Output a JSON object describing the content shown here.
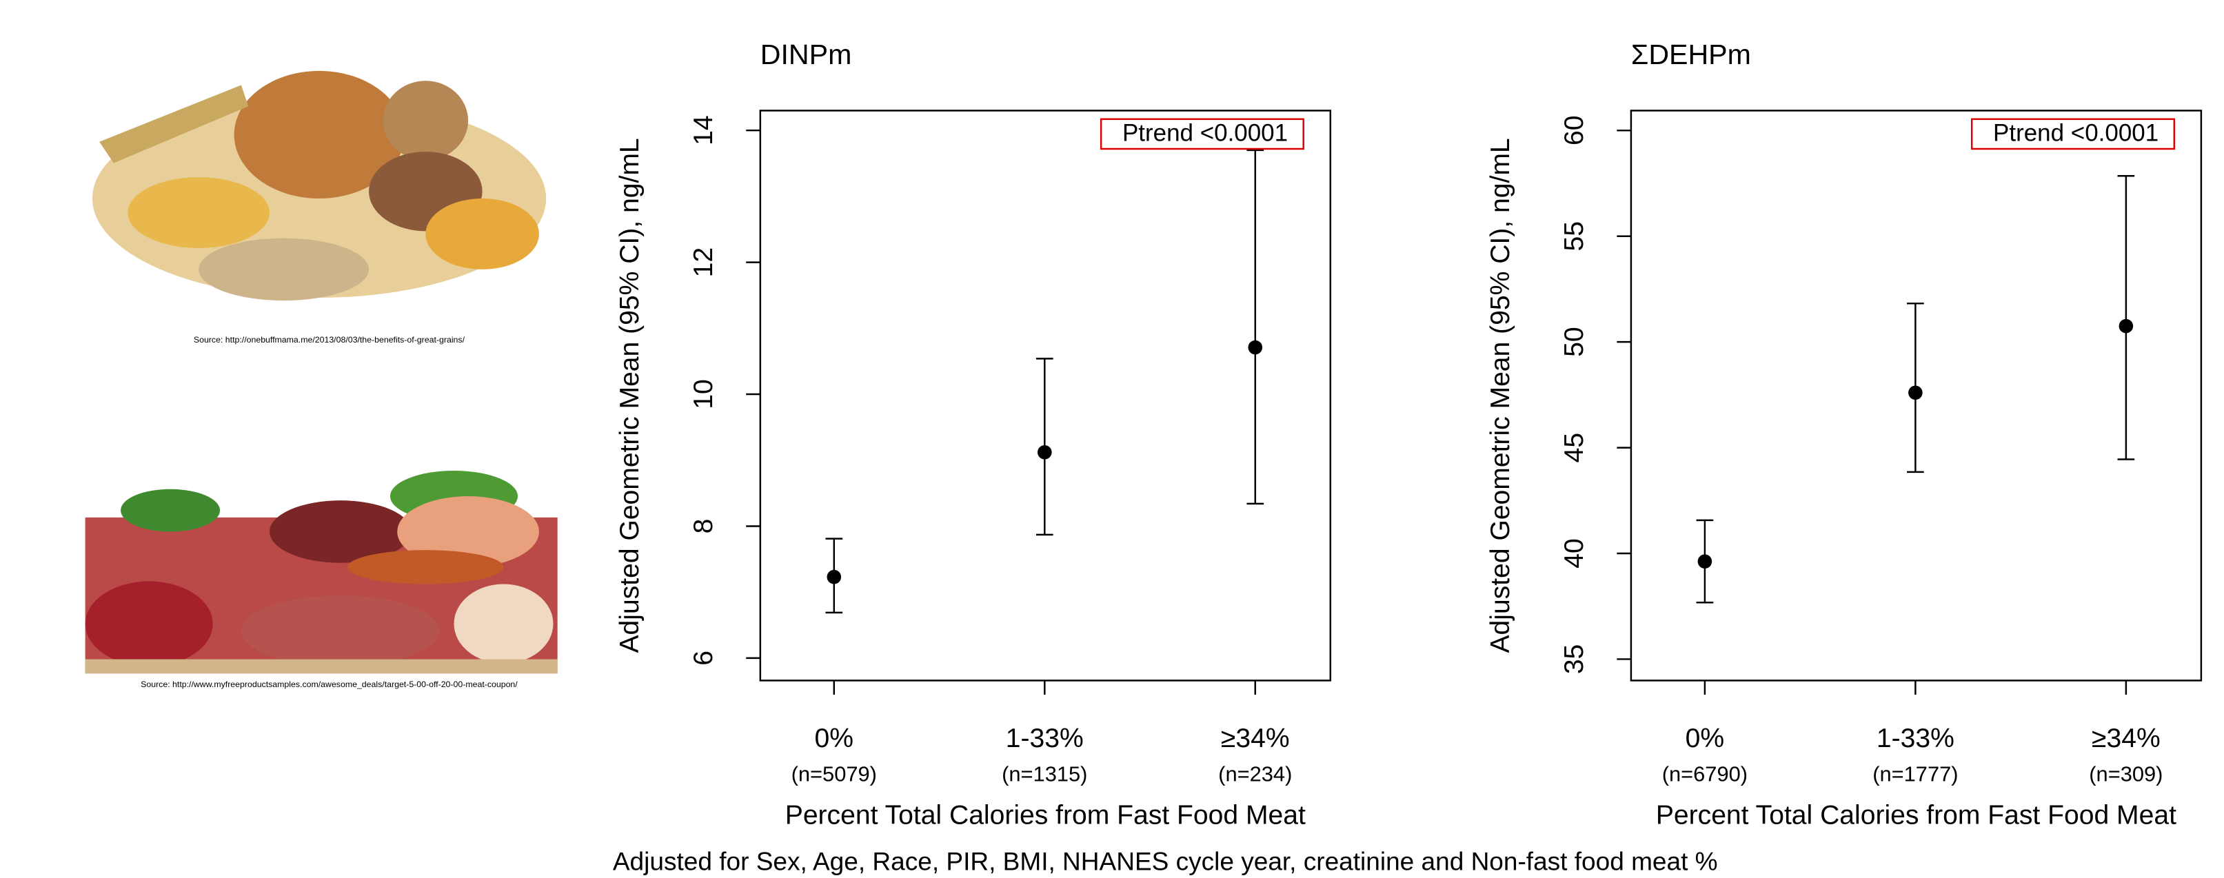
{
  "chart_data": [
    {
      "type": "errorbar",
      "title": "DINPm",
      "categories": [
        "0%",
        "1-33%",
        "≥34%"
      ],
      "category_notes": [
        "(n=5079)",
        "(n=1315)",
        "(n=234)"
      ],
      "values": [
        7.23,
        9.12,
        10.71
      ],
      "lower": [
        6.69,
        7.87,
        8.34
      ],
      "upper": [
        7.81,
        10.54,
        13.7
      ],
      "ylim": [
        5.66,
        14.3
      ],
      "yticks": [
        6,
        8,
        10,
        12,
        14
      ],
      "x_label": "Percent Total Calories from Fast Food Meat",
      "y_label": "Adjusted Geometric Mean (95% CI), ng/mL",
      "annotation": "Ptrend <0.0001",
      "color": "#000000",
      "annotation_color": "#e00000"
    },
    {
      "type": "errorbar",
      "title": "ΣDEHPm",
      "categories": [
        "0%",
        "1-33%",
        "≥34%"
      ],
      "category_notes": [
        "(n=6790)",
        "(n=1777)",
        "(n=309)"
      ],
      "values": [
        39.62,
        47.6,
        50.75
      ],
      "lower": [
        37.68,
        43.85,
        44.45
      ],
      "upper": [
        41.57,
        51.82,
        57.85
      ],
      "ylim": [
        33.99,
        60.94
      ],
      "yticks": [
        35,
        40,
        45,
        50,
        55,
        60
      ],
      "x_label": "Percent Total Calories from Fast Food Meat",
      "y_label": "Adjusted Geometric Mean (95% CI), ng/mL",
      "annotation": "Ptrend <0.0001",
      "color": "#000000",
      "annotation_color": "#e00000"
    }
  ],
  "images": [
    {
      "caption": "Source:  http://onebuffmama.me/2013/08/03/the-benefits-of-great-grains/"
    },
    {
      "caption": "Source: http://www.myfreeproductsamples.com/awesome_deals/target-5-00-off-20-00-meat-coupon/"
    }
  ],
  "footnote": "Adjusted for Sex, Age, Race, PIR, BMI, NHANES cycle year, creatinine and Non-fast food meat %"
}
